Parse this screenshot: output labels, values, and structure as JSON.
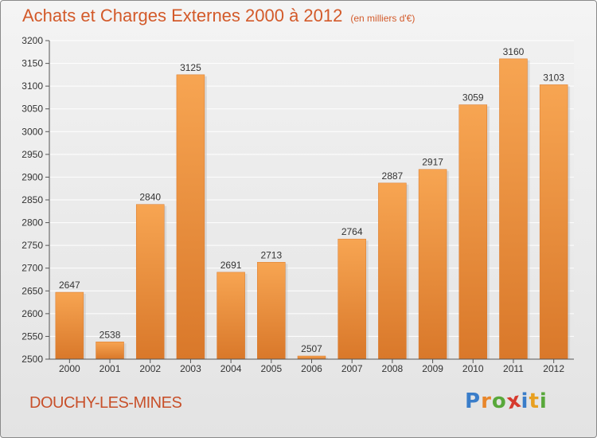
{
  "header": {
    "title": "Achats et Charges Externes 2000 à 2012",
    "unit": "(en milliers d'€)"
  },
  "footer": {
    "town": "DOUCHY-LES-MINES",
    "logo_letters": [
      "P",
      "r",
      "o",
      "x",
      "i",
      "t",
      "i"
    ],
    "logo_colors": [
      "#3a7dc9",
      "#e8862a",
      "#58a83a",
      "#d63a2e",
      "#3a7dc9",
      "#e8a020",
      "#58a83a"
    ]
  },
  "colors": {
    "bar_light": "#f7a552",
    "bar_dark": "#d9782a",
    "title": "#d35a2a"
  },
  "chart_data": {
    "type": "bar",
    "categories": [
      "2000",
      "2001",
      "2002",
      "2003",
      "2004",
      "2005",
      "2006",
      "2007",
      "2008",
      "2009",
      "2010",
      "2011",
      "2012"
    ],
    "values": [
      2647,
      2538,
      2840,
      3125,
      2691,
      2713,
      2507,
      2764,
      2887,
      2917,
      3059,
      3160,
      3103
    ],
    "ylim": [
      2500,
      3200
    ],
    "ytick_step": 50,
    "grid": true,
    "xlabel": "",
    "ylabel": ""
  }
}
